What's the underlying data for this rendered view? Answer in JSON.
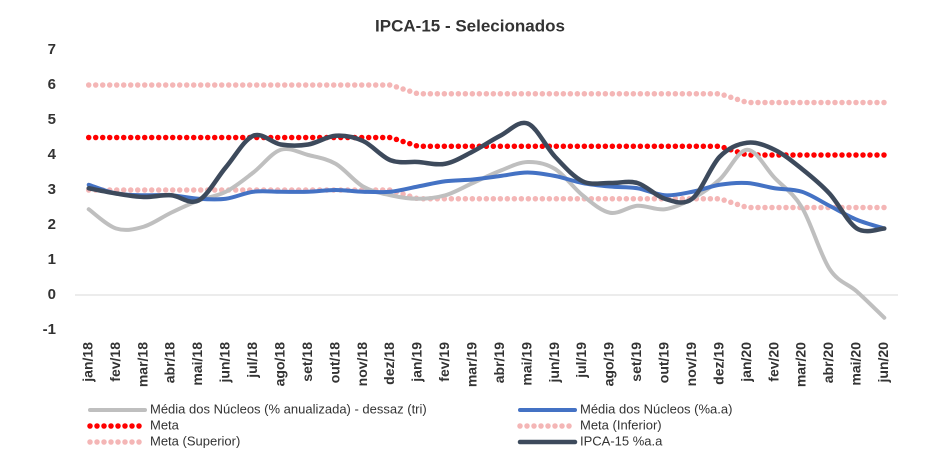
{
  "chart_data": {
    "type": "line",
    "title": "IPCA-15 - Selecionados",
    "categories": [
      "jan/18",
      "fev/18",
      "mar/18",
      "abr/18",
      "mai/18",
      "jun/18",
      "jul/18",
      "ago/18",
      "set/18",
      "out/18",
      "nov/18",
      "dez/18",
      "jan/19",
      "fev/19",
      "mar/19",
      "abr/19",
      "mai/19",
      "jun/19",
      "jul/19",
      "ago/19",
      "set/19",
      "out/19",
      "nov/19",
      "dez/19",
      "jan/20",
      "fev/20",
      "mar/20",
      "abr/20",
      "mai/20",
      "jun/20"
    ],
    "ylim": [
      -1,
      7
    ],
    "yticks": [
      -1,
      0,
      1,
      2,
      3,
      4,
      5,
      6,
      7
    ],
    "series": [
      {
        "name": "Média dos Núcleos (% anualizada) - dessaz (tri)",
        "color": "#bfbfbf",
        "style": "solid",
        "values": [
          2.45,
          1.9,
          1.95,
          2.35,
          2.7,
          2.95,
          3.5,
          4.15,
          4.0,
          3.75,
          3.1,
          2.85,
          2.75,
          2.85,
          3.2,
          3.55,
          3.8,
          3.6,
          2.85,
          2.35,
          2.55,
          2.45,
          2.75,
          3.3,
          4.15,
          3.35,
          2.5,
          0.75,
          0.1,
          -0.65
        ]
      },
      {
        "name": "Média dos Núcleos (%a.a)",
        "color": "#4472c4",
        "style": "solid",
        "values": [
          3.15,
          2.9,
          2.85,
          2.85,
          2.75,
          2.75,
          2.95,
          2.95,
          2.95,
          3.0,
          2.95,
          2.95,
          3.1,
          3.25,
          3.3,
          3.4,
          3.5,
          3.4,
          3.2,
          3.1,
          3.05,
          2.85,
          2.95,
          3.15,
          3.2,
          3.05,
          2.95,
          2.55,
          2.15,
          1.9
        ]
      },
      {
        "name": "Meta",
        "color": "#ff0000",
        "style": "dotted",
        "values": [
          4.5,
          4.5,
          4.5,
          4.5,
          4.5,
          4.5,
          4.5,
          4.5,
          4.5,
          4.5,
          4.5,
          4.5,
          4.25,
          4.25,
          4.25,
          4.25,
          4.25,
          4.25,
          4.25,
          4.25,
          4.25,
          4.25,
          4.25,
          4.25,
          4.0,
          4.0,
          4.0,
          4.0,
          4.0,
          4.0
        ]
      },
      {
        "name": "Meta (Inferior)",
        "color": "#f4b6b6",
        "style": "dotted",
        "values": [
          3.0,
          3.0,
          3.0,
          3.0,
          3.0,
          3.0,
          3.0,
          3.0,
          3.0,
          3.0,
          3.0,
          3.0,
          2.75,
          2.75,
          2.75,
          2.75,
          2.75,
          2.75,
          2.75,
          2.75,
          2.75,
          2.75,
          2.75,
          2.75,
          2.5,
          2.5,
          2.5,
          2.5,
          2.5,
          2.5
        ]
      },
      {
        "name": "Meta (Superior)",
        "color": "#f4b6b6",
        "style": "dotted",
        "values": [
          6.0,
          6.0,
          6.0,
          6.0,
          6.0,
          6.0,
          6.0,
          6.0,
          6.0,
          6.0,
          6.0,
          6.0,
          5.75,
          5.75,
          5.75,
          5.75,
          5.75,
          5.75,
          5.75,
          5.75,
          5.75,
          5.75,
          5.75,
          5.75,
          5.5,
          5.5,
          5.5,
          5.5,
          5.5,
          5.5
        ]
      },
      {
        "name": "IPCA-15 %a.a",
        "color": "#3d4a5c",
        "style": "solid",
        "values": [
          3.05,
          2.9,
          2.8,
          2.85,
          2.7,
          3.65,
          4.55,
          4.3,
          4.3,
          4.55,
          4.4,
          3.85,
          3.8,
          3.75,
          4.1,
          4.55,
          4.9,
          3.95,
          3.25,
          3.2,
          3.2,
          2.75,
          2.75,
          3.95,
          4.35,
          4.15,
          3.6,
          2.9,
          1.9,
          1.9
        ]
      }
    ]
  }
}
